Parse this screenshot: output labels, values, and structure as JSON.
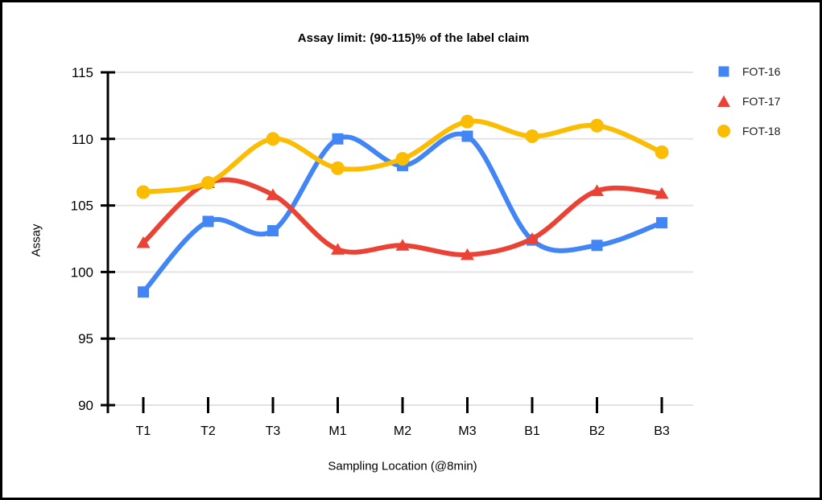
{
  "chart_data": {
    "type": "line",
    "title": "Assay limit: (90-115)% of the label claim",
    "xlabel": "Sampling Location (@8min)",
    "ylabel": "Assay",
    "ylim": [
      90,
      115
    ],
    "yticks": [
      115,
      110,
      105,
      100,
      95,
      90
    ],
    "categories": [
      "T1",
      "T2",
      "T3",
      "M1",
      "M2",
      "M3",
      "B1",
      "B2",
      "B3"
    ],
    "series": [
      {
        "name": "FOT-16",
        "color": "#4285F4",
        "marker": "square",
        "values": [
          98.5,
          103.8,
          103.1,
          110.0,
          108.0,
          110.2,
          102.4,
          102.0,
          103.7
        ]
      },
      {
        "name": "FOT-17",
        "color": "#EA4335",
        "marker": "triangle",
        "values": [
          102.2,
          106.7,
          105.8,
          101.7,
          102.0,
          101.3,
          102.5,
          106.1,
          105.9
        ]
      },
      {
        "name": "FOT-18",
        "color": "#FBBC04",
        "marker": "circle",
        "values": [
          106.0,
          106.7,
          110.0,
          107.8,
          108.5,
          111.3,
          110.2,
          111.0,
          109.0
        ]
      }
    ],
    "grid": true,
    "line_style": "smooth",
    "legend_position": "top-right"
  },
  "style_colors": {
    "grid": "#e3e3e3",
    "axis_line": "#000000",
    "x_axis_line": "#dadada",
    "tick_text": "#000000"
  }
}
